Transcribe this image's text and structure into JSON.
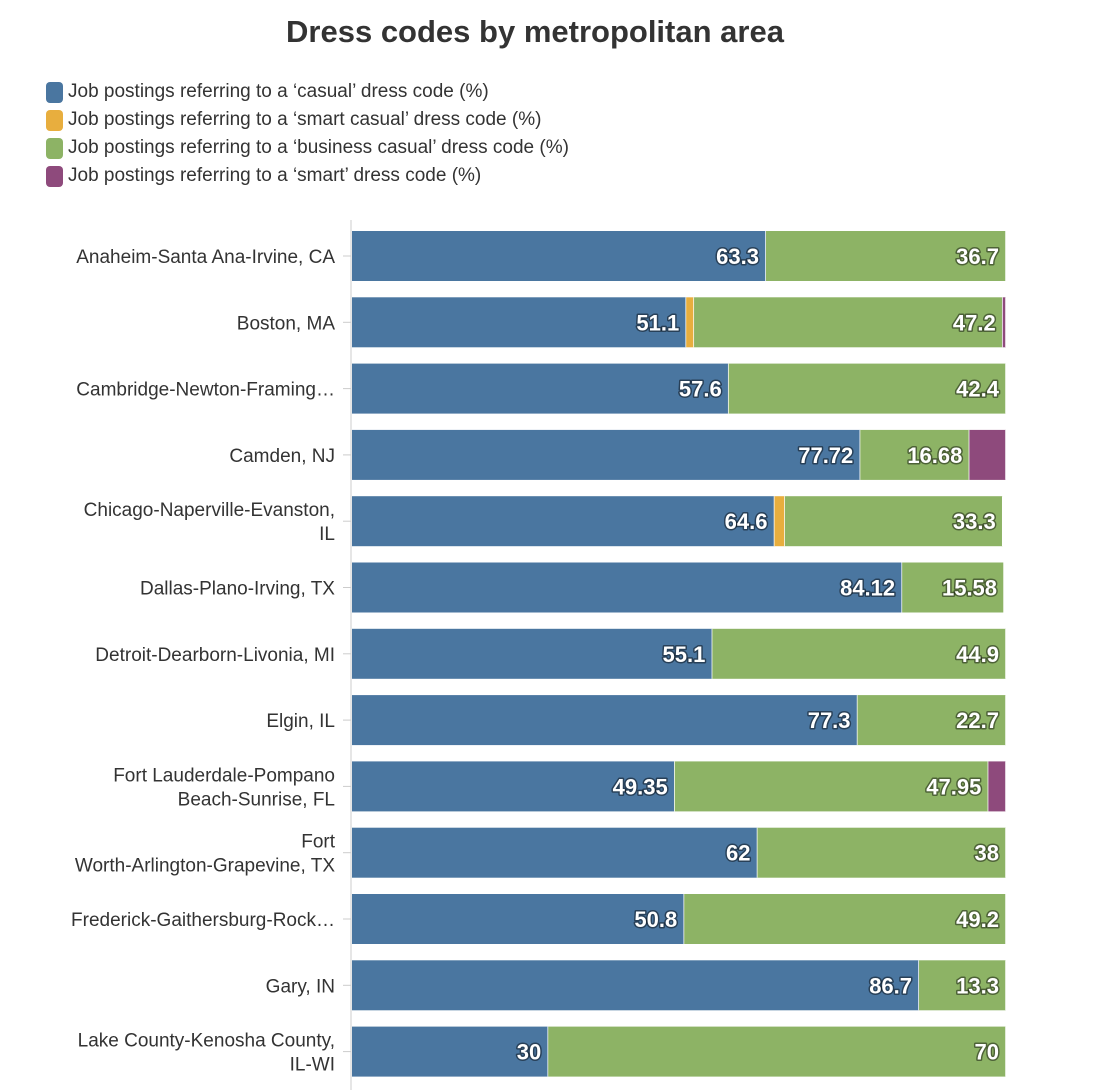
{
  "chart_data": {
    "type": "bar",
    "orientation": "horizontal",
    "stacked": true,
    "title": "Dress codes by metropolitan area",
    "xlim": [
      0,
      100
    ],
    "legend_position": "top-left",
    "categories": [
      "Anaheim-Santa Ana-Irvine, CA",
      "Boston, MA",
      "Cambridge-Newton-Framing…",
      "Camden, NJ",
      "Chicago-Naperville-Evanston, IL",
      "Dallas-Plano-Irving, TX",
      "Detroit-Dearborn-Livonia, MI",
      "Elgin, IL",
      "Fort Lauderdale-Pompano Beach-Sunrise, FL",
      "Fort Worth-Arlington-Grapevine, TX",
      "Frederick-Gaithersburg-Rock…",
      "Gary, IN",
      "Lake County-Kenosha County, IL-WI"
    ],
    "category_lines": [
      [
        "Anaheim-Santa Ana-Irvine, CA"
      ],
      [
        "Boston, MA"
      ],
      [
        "Cambridge-Newton-Framing…"
      ],
      [
        "Camden, NJ"
      ],
      [
        "Chicago-Naperville-Evanston,",
        "IL"
      ],
      [
        "Dallas-Plano-Irving, TX"
      ],
      [
        "Detroit-Dearborn-Livonia, MI"
      ],
      [
        "Elgin, IL"
      ],
      [
        "Fort Lauderdale-Pompano",
        "Beach-Sunrise, FL"
      ],
      [
        "Fort",
        "Worth-Arlington-Grapevine, TX"
      ],
      [
        "Frederick-Gaithersburg-Rock…"
      ],
      [
        "Gary, IN"
      ],
      [
        "Lake County-Kenosha County,",
        "IL-WI"
      ]
    ],
    "series": [
      {
        "name": "Job postings referring to a ‘casual’ dress code (%)",
        "color": "#4a76a0",
        "values": [
          63.3,
          51.1,
          57.6,
          77.72,
          64.6,
          84.12,
          55.1,
          77.3,
          49.35,
          62,
          50.8,
          86.7,
          30
        ]
      },
      {
        "name": "Job postings referring to a ‘smart casual’ dress code (%)",
        "color": "#e8ae3e",
        "values": [
          0,
          1.2,
          0,
          0,
          1.6,
          0,
          0,
          0,
          0,
          0,
          0,
          0,
          0
        ]
      },
      {
        "name": "Job postings referring to a ‘business casual’ dress code (%)",
        "color": "#8db365",
        "values": [
          36.7,
          47.2,
          42.4,
          16.68,
          33.3,
          15.58,
          44.9,
          22.7,
          47.95,
          38,
          49.2,
          13.3,
          70
        ]
      },
      {
        "name": "Job postings referring to a ‘smart’ dress code (%)",
        "color": "#8e4a7c",
        "values": [
          0,
          0.5,
          0,
          5.6,
          0,
          0,
          0,
          0,
          2.7,
          0,
          0,
          0,
          0
        ]
      }
    ],
    "data_labels": [
      [
        "63.3",
        "",
        "36.7",
        ""
      ],
      [
        "51.1",
        "",
        "47.2",
        ""
      ],
      [
        "57.6",
        "",
        "42.4",
        ""
      ],
      [
        "77.72",
        "",
        "16.68",
        ""
      ],
      [
        "64.6",
        "",
        "33.3",
        ""
      ],
      [
        "84.12",
        "",
        "15.58",
        ""
      ],
      [
        "55.1",
        "",
        "44.9",
        ""
      ],
      [
        "77.3",
        "",
        "22.7",
        ""
      ],
      [
        "49.35",
        "",
        "47.95",
        ""
      ],
      [
        "62",
        "",
        "38",
        ""
      ],
      [
        "50.8",
        "",
        "49.2",
        ""
      ],
      [
        "86.7",
        "",
        "13.3",
        ""
      ],
      [
        "30",
        "",
        "70",
        ""
      ]
    ]
  }
}
